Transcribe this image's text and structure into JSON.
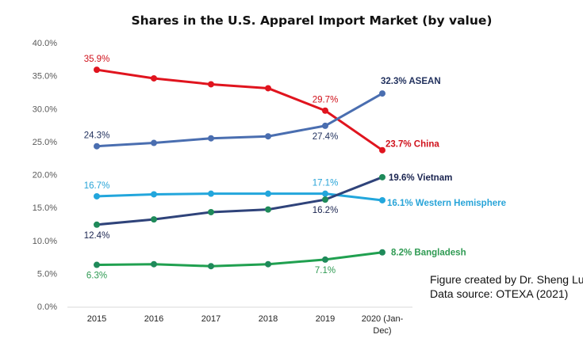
{
  "chart_data": {
    "type": "line",
    "title": "Shares in the U.S. Apparel Import Market (by value)",
    "xlabel": "",
    "ylabel": "",
    "categories": [
      "2015",
      "2016",
      "2017",
      "2018",
      "2019",
      "2020 (Jan-Dec)"
    ],
    "category_lines": [
      [
        "2015"
      ],
      [
        "2016"
      ],
      [
        "2017"
      ],
      [
        "2018"
      ],
      [
        "2019"
      ],
      [
        "2020 (Jan-",
        "Dec)"
      ]
    ],
    "ylim": [
      0,
      40
    ],
    "yticks": [
      0,
      5,
      10,
      15,
      20,
      25,
      30,
      35,
      40
    ],
    "ytick_labels": [
      "0.0%",
      "5.0%",
      "10.0%",
      "15.0%",
      "20.0%",
      "25.0%",
      "30.0%",
      "35.0%",
      "40.0%"
    ],
    "grid": false,
    "legend": "none (series labelled at line ends)",
    "series": [
      {
        "name": "China",
        "line_color": "#e0141e",
        "marker_color": "#e0141e",
        "label_color": "#d0121c",
        "values": [
          35.9,
          34.6,
          33.7,
          33.1,
          29.7,
          23.7
        ],
        "point_labels": [
          {
            "index": 0,
            "text": "35.9%",
            "position": "above"
          },
          {
            "index": 4,
            "text": "29.7%",
            "position": "above"
          }
        ],
        "end_label": "23.7% China"
      },
      {
        "name": "ASEAN",
        "line_color": "#4a6eb0",
        "marker_color": "#4a6eb0",
        "label_color": "#1f2f5c",
        "values": [
          24.3,
          24.8,
          25.5,
          25.8,
          27.4,
          32.3
        ],
        "point_labels": [
          {
            "index": 0,
            "text": "24.3%",
            "position": "above"
          },
          {
            "index": 4,
            "text": "27.4%",
            "position": "below"
          }
        ],
        "end_label": "32.3% ASEAN"
      },
      {
        "name": "Western Hemisphere",
        "line_color": "#22a6dc",
        "marker_color": "#22a6dc",
        "label_color": "#28a4d8",
        "values": [
          16.7,
          17.0,
          17.1,
          17.1,
          17.1,
          16.1
        ],
        "point_labels": [
          {
            "index": 0,
            "text": "16.7%",
            "position": "above"
          },
          {
            "index": 4,
            "text": "17.1%",
            "position": "above"
          }
        ],
        "end_label": "16.1% Western Hemisphere"
      },
      {
        "name": "Vietnam",
        "line_color": "#2f437a",
        "marker_color": "#1f8a5a",
        "label_color": "#1a2450",
        "values": [
          12.4,
          13.2,
          14.3,
          14.7,
          16.2,
          19.6
        ],
        "point_labels": [
          {
            "index": 0,
            "text": "12.4%",
            "position": "below"
          },
          {
            "index": 4,
            "text": "16.2%",
            "position": "below"
          }
        ],
        "end_label": "19.6% Vietnam"
      },
      {
        "name": "Bangladesh",
        "line_color": "#20a050",
        "marker_color": "#1f8a5a",
        "label_color": "#2e9a52",
        "values": [
          6.3,
          6.4,
          6.1,
          6.4,
          7.1,
          8.2
        ],
        "point_labels": [
          {
            "index": 0,
            "text": "6.3%",
            "position": "below"
          },
          {
            "index": 4,
            "text": "7.1%",
            "position": "below"
          }
        ],
        "end_label": "8.2% Bangladesh"
      }
    ],
    "annotations": [
      "Figure created by Dr. Sheng Lu",
      "Data source: OTEXA (2021)"
    ]
  },
  "credit": {
    "line1": "Figure created by Dr. Sheng Lu",
    "line2": "Data source: OTEXA (2021)"
  }
}
